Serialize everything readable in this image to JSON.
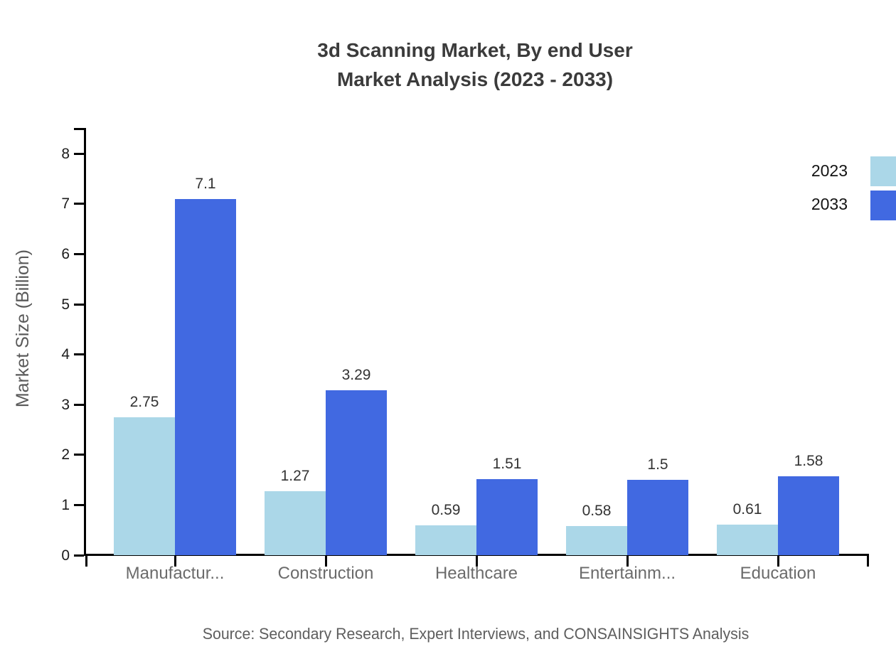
{
  "title": {
    "line1": "3d Scanning Market, By end User",
    "line2": "Market Analysis (2023 - 2033)"
  },
  "source": "Source: Secondary Research, Expert Interviews, and CONSAINSIGHTS Analysis",
  "chart_data": {
    "type": "bar",
    "title": "3d Scanning Market, By end User Market Analysis (2023 - 2033)",
    "categories": [
      "Manufactur...",
      "Construction",
      "Healthcare",
      "Entertainm...",
      "Education"
    ],
    "series": [
      {
        "name": "2023",
        "color": "#abd7e8",
        "values": [
          2.75,
          1.27,
          0.59,
          0.58,
          0.61
        ],
        "labels": [
          "2.75",
          "1.27",
          "0.59",
          "0.58",
          "0.61"
        ]
      },
      {
        "name": "2033",
        "color": "#4169e1",
        "values": [
          7.1,
          3.29,
          1.51,
          1.5,
          1.58
        ],
        "labels": [
          "7.1",
          "3.29",
          "1.51",
          "1.5",
          "1.58"
        ]
      }
    ],
    "xlabel": "",
    "ylabel": "Market Size (Billion)",
    "yticks": [
      "0",
      "1",
      "2",
      "3",
      "4",
      "5",
      "6",
      "7",
      "8"
    ],
    "ylim": [
      0,
      8.5
    ],
    "grid": false,
    "legend_position": "top-right",
    "axis_color": "#000000"
  }
}
